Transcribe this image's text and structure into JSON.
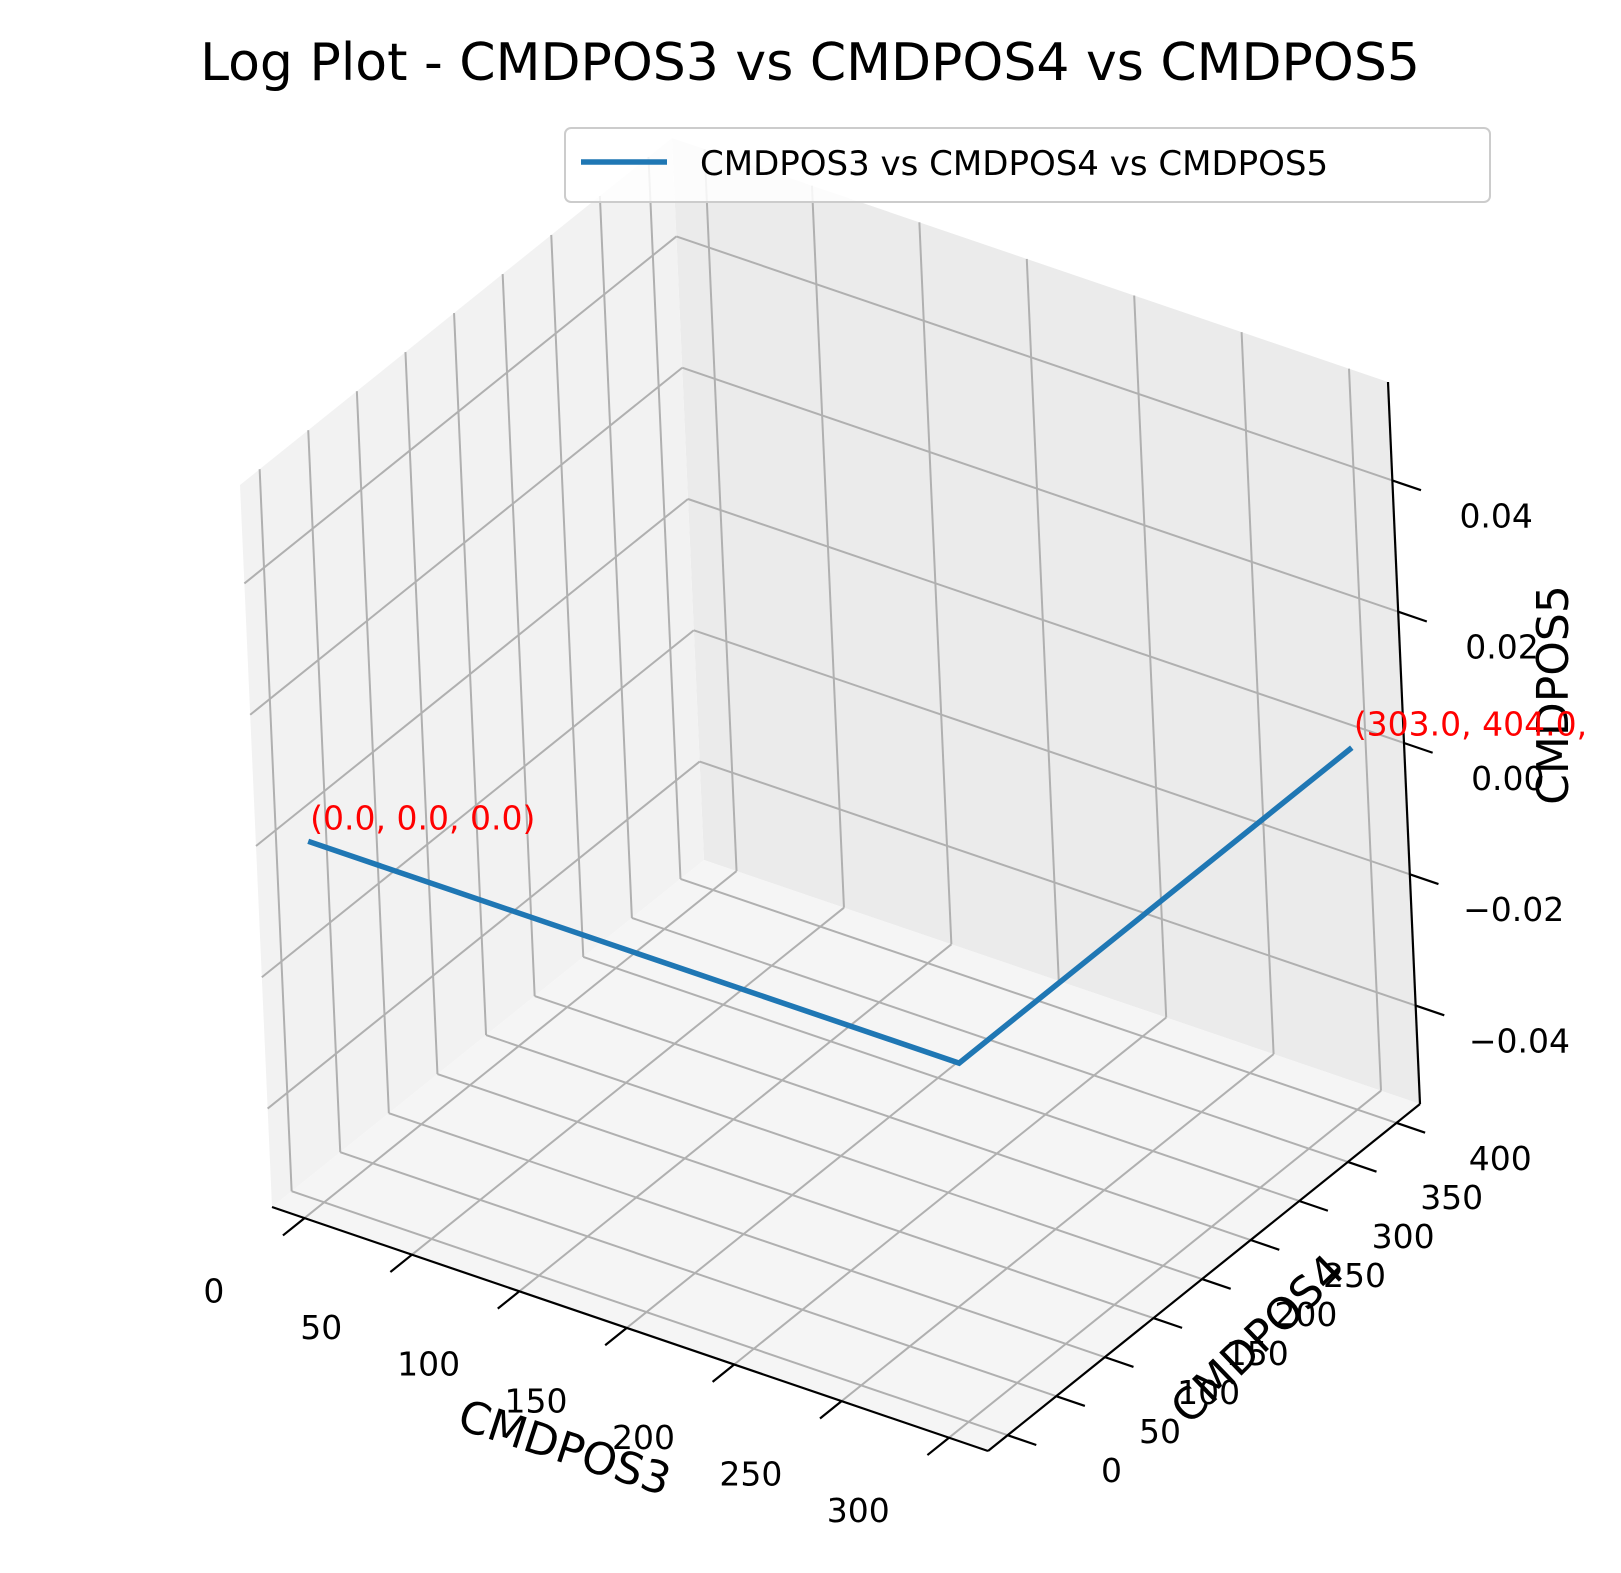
{
  "chart_data": {
    "type": "line",
    "projection": "3d",
    "title": "Log Plot - CMDPOS3 vs CMDPOS4 vs CMDPOS5",
    "xlabel": "CMDPOS3",
    "ylabel": "CMDPOS4",
    "zlabel": "CMDPOS5",
    "x_ticks": [
      "0",
      "50",
      "100",
      "150",
      "200",
      "250",
      "300"
    ],
    "y_ticks": [
      "0",
      "50",
      "100",
      "150",
      "200",
      "250",
      "300",
      "350",
      "400"
    ],
    "z_ticks": [
      "−0.04",
      "−0.02",
      "0.00",
      "0.02",
      "0.04"
    ],
    "xlim": [
      -15.15,
      318.15
    ],
    "ylim": [
      -20.2,
      424.2
    ],
    "zlim": [
      -0.055,
      0.055
    ],
    "grid": true,
    "legend_position": "top-right",
    "series": [
      {
        "name": "CMDPOS3 vs CMDPOS4 vs CMDPOS5",
        "color": "#1f77b4",
        "points": [
          {
            "x": 0.0,
            "y": 0.0,
            "z": 0.0
          },
          {
            "x": 303.0,
            "y": 0.0,
            "z": 0.0
          },
          {
            "x": 303.0,
            "y": 404.0,
            "z": 0.0
          }
        ]
      }
    ],
    "annotations": [
      {
        "text": "(0.0, 0.0, 0.0)",
        "color": "#ff0000"
      },
      {
        "text": "(303.0, 404.0, ",
        "color": "#ff0000"
      }
    ]
  }
}
